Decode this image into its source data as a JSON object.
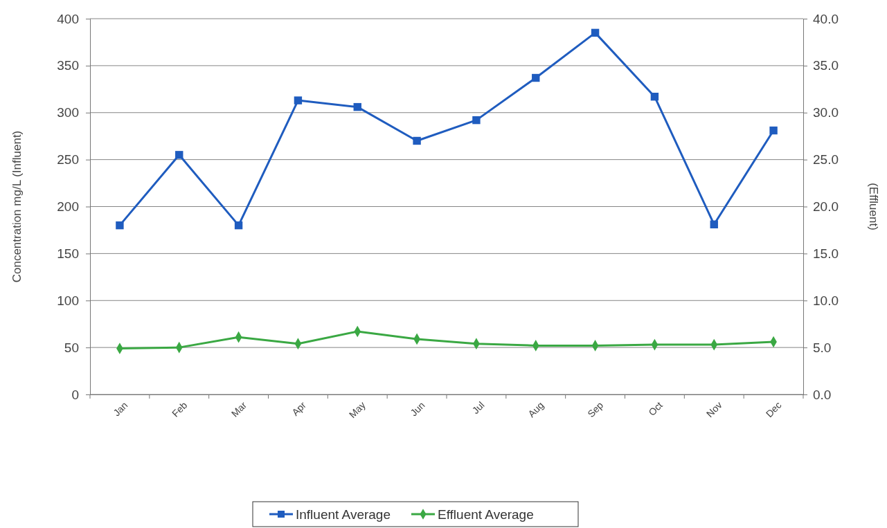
{
  "chart_data": {
    "type": "line",
    "xlabel": null,
    "ylabel": "Concentration mg/L (Influent)",
    "y2label": "(Effluent)",
    "categories": [
      "Jan",
      "Feb",
      "Mar",
      "Apr",
      "May",
      "Jun",
      "Jul",
      "Aug",
      "Sep",
      "Oct",
      "Nov",
      "Dec"
    ],
    "series": [
      {
        "name": "Influent Average",
        "color": "#1f5cbf",
        "marker": "square",
        "values": [
          180,
          255,
          180,
          313,
          306,
          270,
          292,
          337,
          385,
          317,
          181,
          281
        ]
      },
      {
        "name": "Effluent Average",
        "color": "#3aa843",
        "marker": "diamond",
        "axis": "y2",
        "values": [
          4.9,
          5.0,
          6.1,
          5.4,
          6.7,
          5.9,
          5.4,
          5.2,
          5.2,
          5.3,
          5.3,
          5.6
        ]
      }
    ],
    "ylim": [
      0,
      400
    ],
    "yticks": [
      0,
      50,
      100,
      150,
      200,
      250,
      300,
      350,
      400
    ],
    "y2lim": [
      0,
      40
    ],
    "y2ticks": [
      {
        "value": 0,
        "label": "0.0"
      },
      {
        "value": 5,
        "label": "5.0"
      },
      {
        "value": 10,
        "label": "10.0"
      },
      {
        "value": 15,
        "label": "15.0"
      },
      {
        "value": 20,
        "label": "20.0"
      },
      {
        "value": 25,
        "label": "25.0"
      },
      {
        "value": 30,
        "label": "30.0"
      },
      {
        "value": 35,
        "label": "35.0"
      },
      {
        "value": 40,
        "label": "40.0"
      }
    ],
    "grid": "y",
    "legend": "bottom",
    "line_style": "solid"
  }
}
